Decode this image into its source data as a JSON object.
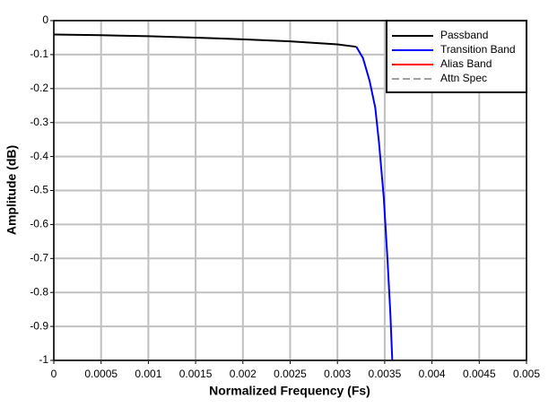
{
  "chart_data": {
    "type": "line",
    "x_label": "Normalized Frequency (Fs)",
    "y_label": "Amplitude (dB)",
    "xlim": [
      0,
      0.005
    ],
    "xticks": [
      0,
      0.0005,
      0.001,
      0.0015,
      0.002,
      0.0025,
      0.003,
      0.0035,
      0.004,
      0.0045,
      0.005
    ],
    "ylim": [
      -1,
      0
    ],
    "yticks": [
      0,
      -0.1,
      -0.2,
      -0.3,
      -0.4,
      -0.5,
      -0.6,
      -0.7,
      -0.8,
      -0.9,
      -1
    ],
    "grid": true,
    "legend": "upper right",
    "series": [
      {
        "name": "Passband",
        "color": "#000000",
        "linestyle": "solid",
        "x": [
          0,
          0.0005,
          0.001,
          0.0015,
          0.002,
          0.0025,
          0.003,
          0.0032
        ],
        "values": [
          -0.041,
          -0.043,
          -0.046,
          -0.05,
          -0.055,
          -0.061,
          -0.07,
          -0.077
        ]
      },
      {
        "name": "Transition Band",
        "color": "#0000ff",
        "linestyle": "solid",
        "x": [
          0.0032,
          0.00327,
          0.00334,
          0.0034,
          0.00344,
          0.00349,
          0.00353,
          0.00356,
          0.00358
        ],
        "values": [
          -0.077,
          -0.11,
          -0.177,
          -0.256,
          -0.36,
          -0.52,
          -0.705,
          -0.863,
          -1
        ]
      },
      {
        "name": "Alias Band",
        "color": "#ff0000",
        "linestyle": "solid",
        "x": [],
        "values": []
      },
      {
        "name": "Attn Spec",
        "color": "#a0a0a0",
        "linestyle": "dashed",
        "x": [],
        "values": []
      }
    ]
  }
}
